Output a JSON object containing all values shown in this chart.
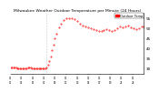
{
  "title": "Milwaukee Weather Outdoor Temperature per Minute (24 Hours)",
  "title_fontsize": 3.2,
  "background_color": "#ffffff",
  "line_color": "#ff0000",
  "line_style": "none",
  "line_width": 0.4,
  "marker": ".",
  "marker_size": 0.8,
  "vline_color": "#999999",
  "vline_style": ":",
  "vline_positions": [
    0.27
  ],
  "ylim": [
    27,
    58
  ],
  "xlim": [
    0,
    1
  ],
  "yticks": [
    30,
    35,
    40,
    45,
    50,
    55
  ],
  "ytick_fontsize": 3.0,
  "xtick_fontsize": 2.0,
  "legend_label": "Outdoor Temp",
  "x_data": [
    0.0,
    0.01,
    0.02,
    0.03,
    0.04,
    0.05,
    0.06,
    0.07,
    0.08,
    0.09,
    0.1,
    0.11,
    0.12,
    0.13,
    0.14,
    0.15,
    0.16,
    0.17,
    0.18,
    0.19,
    0.2,
    0.21,
    0.22,
    0.23,
    0.24,
    0.25,
    0.26,
    0.27,
    0.28,
    0.29,
    0.3,
    0.31,
    0.32,
    0.33,
    0.34,
    0.36,
    0.38,
    0.4,
    0.42,
    0.44,
    0.46,
    0.48,
    0.5,
    0.52,
    0.54,
    0.56,
    0.58,
    0.6,
    0.62,
    0.64,
    0.66,
    0.68,
    0.7,
    0.72,
    0.74,
    0.76,
    0.78,
    0.8,
    0.82,
    0.84,
    0.86,
    0.88,
    0.9,
    0.92,
    0.94,
    0.96,
    0.98,
    1.0
  ],
  "y_data": [
    30.5,
    30.4,
    30.3,
    30.3,
    30.2,
    30.1,
    30.1,
    30.0,
    30.0,
    29.9,
    29.9,
    30.0,
    30.1,
    30.2,
    30.3,
    30.2,
    30.1,
    30.0,
    29.9,
    29.8,
    29.7,
    29.7,
    29.8,
    30.0,
    30.1,
    30.0,
    29.9,
    30.2,
    31.5,
    33.5,
    36.0,
    39.0,
    42.0,
    45.0,
    47.5,
    50.5,
    52.5,
    54.0,
    55.0,
    55.2,
    55.0,
    54.5,
    53.5,
    52.5,
    51.5,
    50.8,
    50.5,
    50.0,
    49.5,
    49.0,
    48.5,
    48.8,
    49.2,
    49.5,
    49.0,
    48.5,
    49.0,
    50.0,
    51.0,
    50.5,
    50.8,
    51.2,
    50.5,
    50.0,
    49.5,
    50.2,
    50.8,
    51.0
  ],
  "xtick_labels": [
    "01\n01",
    "01\n03",
    "01\n05",
    "01\n07",
    "01\n09",
    "01\n11",
    "01\n13",
    "01\n15",
    "01\n17",
    "01\n19",
    "01\n21",
    "01\n23"
  ],
  "xtick_positions": [
    0.0,
    0.083,
    0.167,
    0.25,
    0.333,
    0.417,
    0.5,
    0.583,
    0.667,
    0.75,
    0.833,
    0.917
  ]
}
